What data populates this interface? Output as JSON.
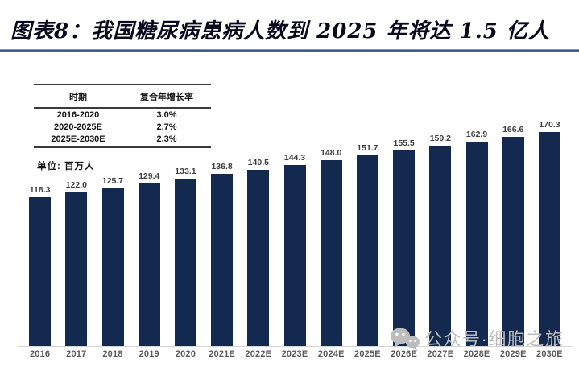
{
  "title": "图表8：我国糖尿病患病人数到 2025 年将达 1.5 亿人",
  "unit_label": "单位: 百万人",
  "cagr_table": {
    "headers": [
      "时期",
      "复合年增长率"
    ],
    "rows": [
      [
        "2016-2020",
        "3.0%"
      ],
      [
        "2020-2025E",
        "2.7%"
      ],
      [
        "2025E-2030E",
        "2.3%"
      ]
    ]
  },
  "chart_data": {
    "type": "bar",
    "title": "图表8：我国糖尿病患病人数到 2025 年将达 1.5 亿人",
    "categories": [
      "2016",
      "2017",
      "2018",
      "2019",
      "2020",
      "2021E",
      "2022E",
      "2023E",
      "2024E",
      "2025E",
      "2026E",
      "2027E",
      "2028E",
      "2029E",
      "2030E"
    ],
    "values": [
      118.3,
      122.0,
      125.7,
      129.4,
      133.1,
      136.8,
      140.5,
      144.3,
      148.0,
      151.7,
      155.5,
      159.2,
      162.9,
      166.6,
      170.3
    ],
    "xlabel": "",
    "ylabel": "百万人",
    "ylim": [
      0,
      175
    ],
    "grid": false,
    "legend_position": "none",
    "data_labels": true
  },
  "watermark": {
    "icon": "wechat-icon",
    "text": "公众号·细胞之旅"
  },
  "colors": {
    "bar": "#13294f",
    "title_text": "#0a0a1e",
    "rule_dark_blue": "#16365c",
    "rule_light_blue": "#4f81bd",
    "value_label": "#3f3f3f",
    "axis_label": "#595959",
    "baseline": "#d6d6d6",
    "watermark": "#bdbdbd"
  }
}
